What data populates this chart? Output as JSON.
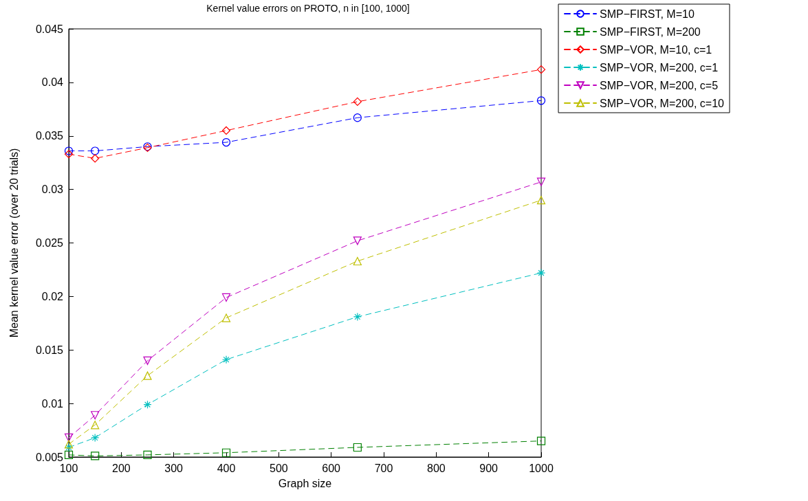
{
  "chart_data": {
    "type": "line",
    "title": "Kernel value errors on PROTO, n in [100, 1000]",
    "xlabel": "Graph size",
    "ylabel": "Mean kernel value error (over 20 trials)",
    "x": [
      100,
      150,
      250,
      400,
      650,
      1000
    ],
    "series": [
      {
        "name": "SMP−FIRST, M=10",
        "color": "#0000ff",
        "marker": "circle",
        "values": [
          0.0336,
          0.0336,
          0.034,
          0.0344,
          0.0367,
          0.0383
        ]
      },
      {
        "name": "SMP−FIRST, M=200",
        "color": "#008000",
        "marker": "square",
        "values": [
          0.0052,
          0.0051,
          0.0052,
          0.0054,
          0.0059,
          0.0065
        ]
      },
      {
        "name": "SMP−VOR, M=10, c=1",
        "color": "#ff0000",
        "marker": "diamond",
        "values": [
          0.0333,
          0.0329,
          0.0339,
          0.0355,
          0.0382,
          0.0412
        ]
      },
      {
        "name": "SMP−VOR, M=200, c=1",
        "color": "#00bfbf",
        "marker": "cross",
        "values": [
          0.0059,
          0.0068,
          0.0099,
          0.0141,
          0.0181,
          0.0222
        ]
      },
      {
        "name": "SMP−VOR, M=200, c=5",
        "color": "#bf00bf",
        "marker": "triangle-down",
        "values": [
          0.0068,
          0.0089,
          0.014,
          0.0199,
          0.0252,
          0.0307
        ]
      },
      {
        "name": "SMP−VOR, M=200, c=10",
        "color": "#bfbf00",
        "marker": "triangle",
        "values": [
          0.0062,
          0.008,
          0.0126,
          0.018,
          0.0233,
          0.029
        ]
      }
    ],
    "xlim": [
      100,
      1000
    ],
    "xticks": [
      100,
      200,
      300,
      400,
      500,
      600,
      700,
      800,
      900,
      1000
    ],
    "ylim": [
      0.005,
      0.045
    ],
    "yticks": [
      0.005,
      0.01,
      0.015,
      0.02,
      0.025,
      0.03,
      0.035,
      0.04,
      0.045
    ],
    "grid": false,
    "legend": "top right",
    "line_style": "dashed"
  }
}
